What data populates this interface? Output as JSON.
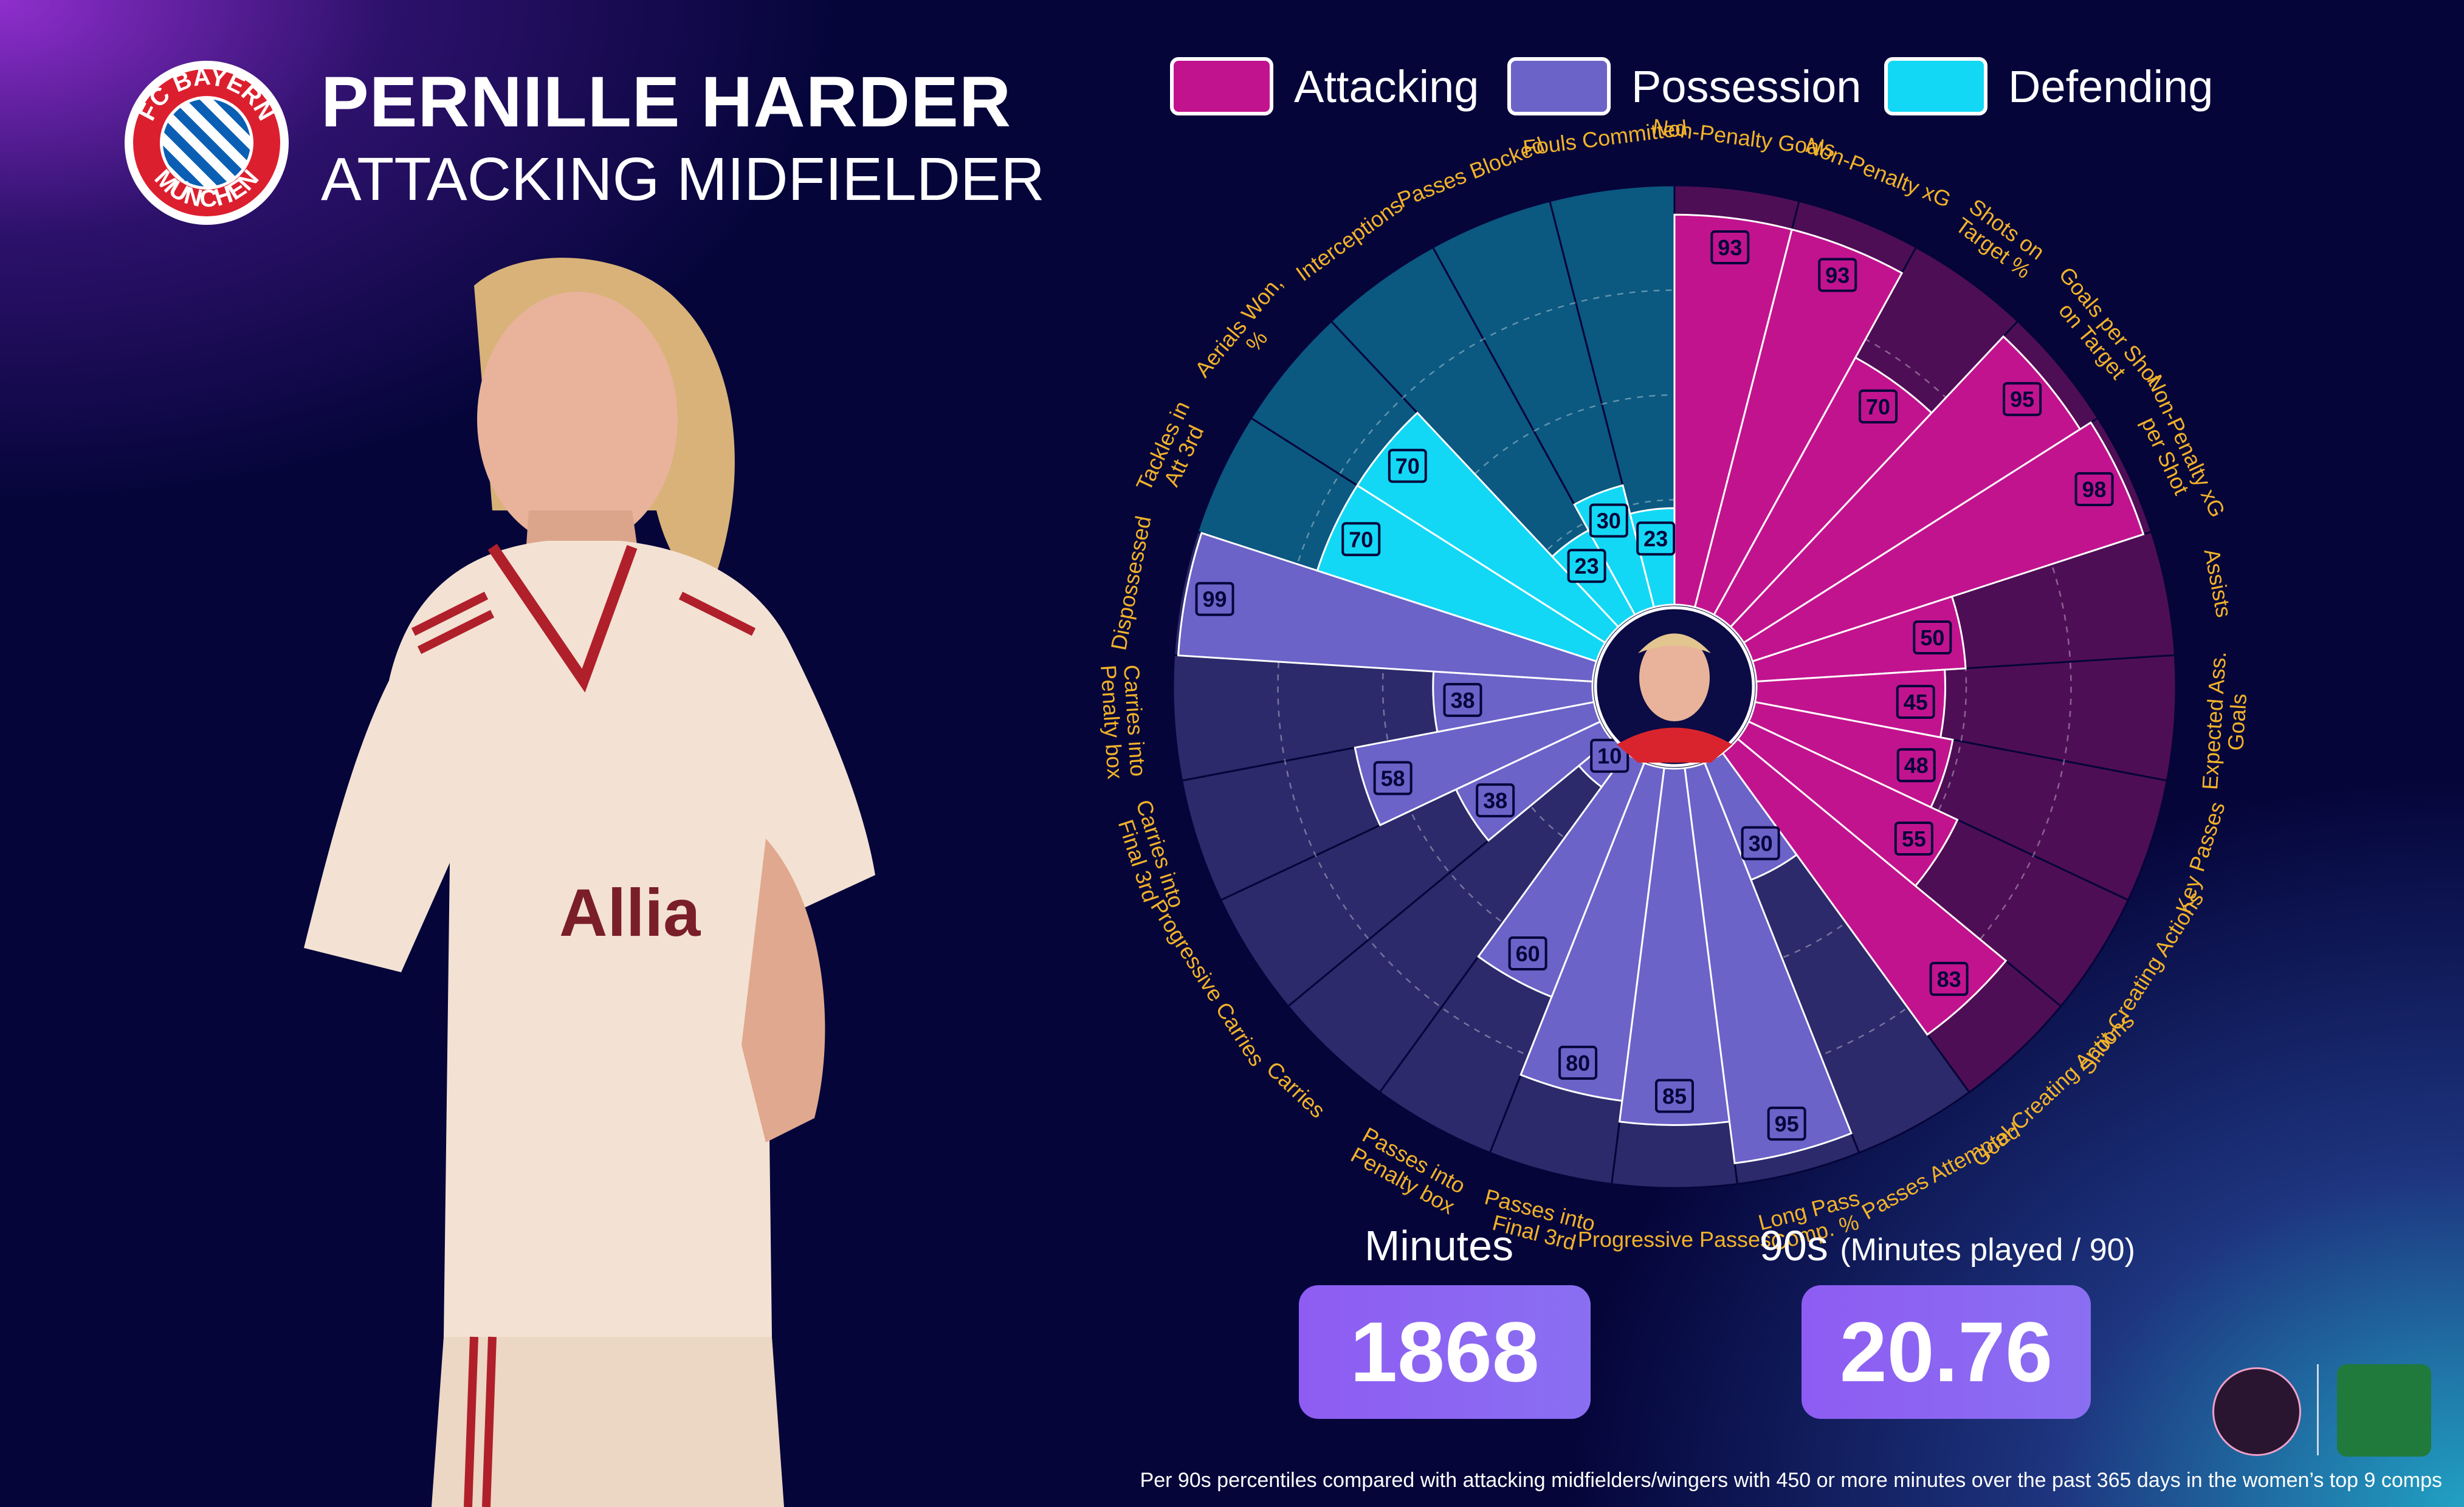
{
  "header": {
    "player_name": "PERNILLE HARDER",
    "position": "ATTACKING MIDFIELDER",
    "club_crest_text_top": "FC BAYERN",
    "club_crest_text_bottom": "MÜNCHEN"
  },
  "legend": [
    {
      "label": "Attacking",
      "color": "#c2138f"
    },
    {
      "label": "Possession",
      "color": "#6b63c8"
    },
    {
      "label": "Defending",
      "color": "#12d8f5"
    }
  ],
  "chart_data": {
    "type": "polar-bar",
    "value_range": [
      0,
      100
    ],
    "series_colors": {
      "Attacking": {
        "bar": "#c2138f",
        "background": "#4e0e55"
      },
      "Possession": {
        "bar": "#6b63c8",
        "background": "#2c2a6a"
      },
      "Defending": {
        "bar": "#12d8f5",
        "background": "#0b5880"
      }
    },
    "metrics": [
      {
        "label": "Non-Penalty Goals",
        "value": 93,
        "group": "Attacking"
      },
      {
        "label": "Non-Penalty xG",
        "value": 93,
        "group": "Attacking"
      },
      {
        "label": "Shots on Target %",
        "value": 70,
        "group": "Attacking"
      },
      {
        "label": "Goals per Shot on Target",
        "value": 95,
        "group": "Attacking"
      },
      {
        "label": "Non-Penalty xG per Shot",
        "value": 98,
        "group": "Attacking"
      },
      {
        "label": "Assists",
        "value": 50,
        "group": "Attacking"
      },
      {
        "label": "Expected Ass. Goals",
        "value": 45,
        "group": "Attacking"
      },
      {
        "label": "Key Passes",
        "value": 48,
        "group": "Attacking"
      },
      {
        "label": "Shot-Creating Actions",
        "value": 55,
        "group": "Attacking"
      },
      {
        "label": "Goal-Creating Actions",
        "value": 83,
        "group": "Attacking"
      },
      {
        "label": "Passes Attempted",
        "value": 30,
        "group": "Possession"
      },
      {
        "label": "Long Pass Comp. %",
        "value": 95,
        "group": "Possession"
      },
      {
        "label": "Progressive Passes",
        "value": 85,
        "group": "Possession"
      },
      {
        "label": "Passes into Final 3rd",
        "value": 80,
        "group": "Possession"
      },
      {
        "label": "Passes into Penalty box",
        "value": 60,
        "group": "Possession"
      },
      {
        "label": "Carries",
        "value": 10,
        "group": "Possession"
      },
      {
        "label": "Progressive Carries",
        "value": 38,
        "group": "Possession"
      },
      {
        "label": "Carries into Final 3rd",
        "value": 58,
        "group": "Possession"
      },
      {
        "label": "Carries into Penalty box",
        "value": 38,
        "group": "Possession"
      },
      {
        "label": "Dispossessed",
        "value": 99,
        "group": "Possession"
      },
      {
        "label": "Tackles in Att 3rd",
        "value": 70,
        "group": "Defending"
      },
      {
        "label": "Aerials Won, %",
        "value": 70,
        "group": "Defending"
      },
      {
        "label": "Interceptions",
        "value": 23,
        "group": "Defending"
      },
      {
        "label": "Passes Blocked",
        "value": 30,
        "group": "Defending"
      },
      {
        "label": "Fouls Committed",
        "value": 23,
        "group": "Defending"
      }
    ]
  },
  "stats": {
    "minutes_label": "Minutes",
    "minutes_value": "1868",
    "nineties_label": "90s",
    "nineties_sub": "(Minutes played / 90)",
    "nineties_value": "20.76"
  },
  "footnote": "Per 90s percentiles compared with attacking midfielders/wingers with 450 or more minutes over the past 365 days in the women’s top 9 comps"
}
